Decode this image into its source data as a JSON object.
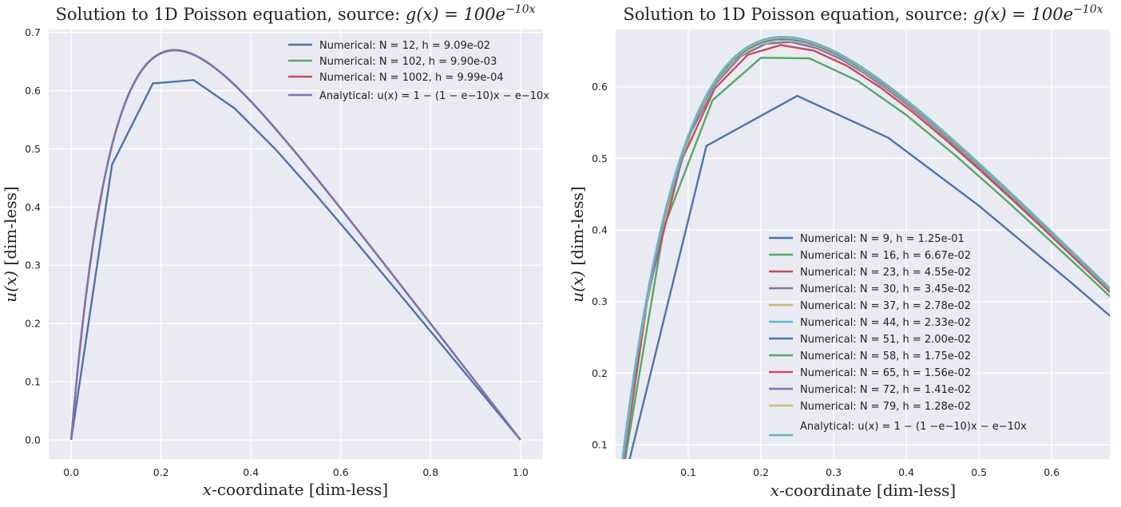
{
  "chart_data": [
    {
      "type": "line",
      "title": {
        "prefix": "Solution to 1D Poisson equation, source: ",
        "math": "g(x) = 100e",
        "sup": "−10x"
      },
      "xlabel": {
        "math": "x",
        "text": "-coordinate [dim-less]"
      },
      "ylabel": {
        "math": "u(x)",
        "text": " [dim-less]"
      },
      "xlim": [
        -0.05,
        1.05
      ],
      "ylim": [
        -0.033,
        0.705
      ],
      "xticks": [
        0.0,
        0.2,
        0.4,
        0.6,
        0.8,
        1.0
      ],
      "xtick_labels": [
        "0.0",
        "0.2",
        "0.4",
        "0.6",
        "0.8",
        "1.0"
      ],
      "yticks": [
        0.0,
        0.1,
        0.2,
        0.3,
        0.4,
        0.5,
        0.6,
        0.7
      ],
      "ytick_labels": [
        "0.0",
        "0.1",
        "0.2",
        "0.3",
        "0.4",
        "0.5",
        "0.6",
        "0.7"
      ],
      "grid": true,
      "legend_position": "upper-right",
      "series": [
        {
          "name": "Numerical: N = 12, h = 9.09e-02",
          "color": "#4c72b0",
          "source": "numerical",
          "N": 12
        },
        {
          "name": "Numerical: N = 102, h = 9.90e-03",
          "color": "#55a868",
          "source": "numerical",
          "N": 102
        },
        {
          "name": "Numerical: N = 1002, h = 9.99e-04",
          "color": "#c44e52",
          "source": "numerical",
          "N": 1002
        },
        {
          "name": "Analytical: u(x) = 1 − (1 − e−10)x − e−10x",
          "color": "#8172b2",
          "source": "analytical"
        }
      ]
    },
    {
      "type": "line",
      "title": {
        "prefix": "Solution to 1D Poisson equation, source: ",
        "math": "g(x) = 100e",
        "sup": "−10x"
      },
      "xlabel": {
        "math": "x",
        "text": "-coordinate [dim-less]"
      },
      "ylabel": {
        "math": "u(x)",
        "text": " [dim-less]"
      },
      "xlim": [
        0.0,
        0.68
      ],
      "ylim": [
        0.08,
        0.68
      ],
      "xticks": [
        0.1,
        0.2,
        0.3,
        0.4,
        0.5,
        0.6
      ],
      "xtick_labels": [
        "0.1",
        "0.2",
        "0.3",
        "0.4",
        "0.5",
        "0.6"
      ],
      "yticks": [
        0.1,
        0.2,
        0.3,
        0.4,
        0.5,
        0.6
      ],
      "ytick_labels": [
        "0.1",
        "0.2",
        "0.3",
        "0.4",
        "0.5",
        "0.6"
      ],
      "grid": true,
      "legend_position": "lower-center",
      "series": [
        {
          "name": "Numerical: N = 9, h = 1.25e-01",
          "color": "#4c72b0",
          "source": "numerical",
          "N": 9
        },
        {
          "name": "Numerical: N = 16, h = 6.67e-02",
          "color": "#55a868",
          "source": "numerical",
          "N": 16
        },
        {
          "name": "Numerical: N = 23, h = 4.55e-02",
          "color": "#c44e52",
          "source": "numerical",
          "N": 23
        },
        {
          "name": "Numerical: N = 30, h = 3.45e-02",
          "color": "#8172b2",
          "source": "numerical",
          "N": 30
        },
        {
          "name": "Numerical: N = 37, h = 2.78e-02",
          "color": "#ccb974",
          "source": "numerical",
          "N": 37
        },
        {
          "name": "Numerical: N = 44, h = 2.33e-02",
          "color": "#64b5cd",
          "source": "numerical",
          "N": 44
        },
        {
          "name": "Numerical: N = 51, h = 2.00e-02",
          "color": "#4c72b0",
          "source": "numerical",
          "N": 51
        },
        {
          "name": "Numerical: N = 58, h = 1.75e-02",
          "color": "#55a868",
          "source": "numerical",
          "N": 58
        },
        {
          "name": "Numerical: N = 65, h = 1.56e-02",
          "color": "#c44e52",
          "source": "numerical",
          "N": 65
        },
        {
          "name": "Numerical: N = 72, h = 1.41e-02",
          "color": "#8172b2",
          "source": "numerical",
          "N": 72
        },
        {
          "name": "Numerical: N = 79, h = 1.28e-02",
          "color": "#ccb974",
          "source": "numerical",
          "N": 79
        },
        {
          "name": "Analytical: u(x) = 1 − (1 −e−10)x − e−10x",
          "color": "#64b5cd",
          "source": "analytical"
        }
      ]
    }
  ]
}
